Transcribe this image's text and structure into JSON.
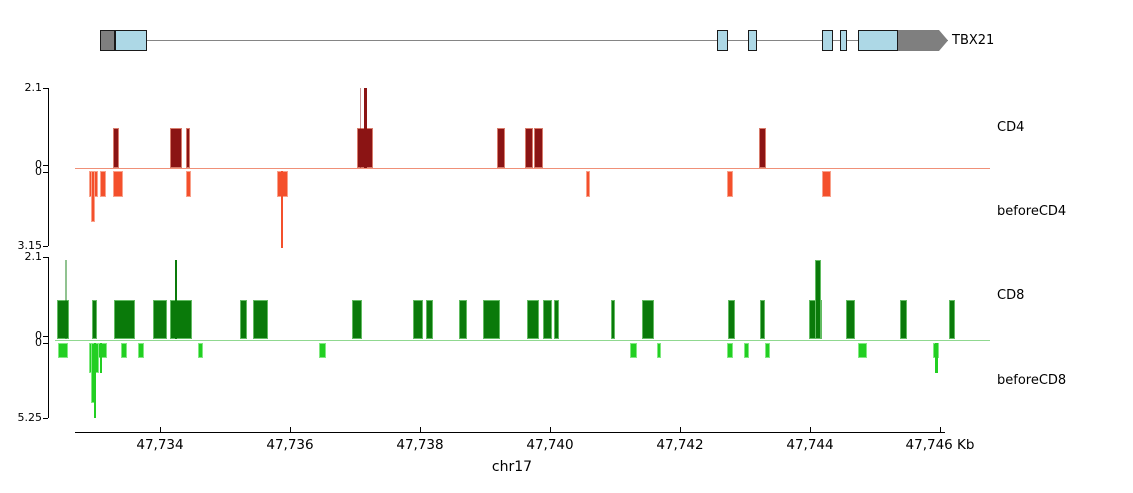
{
  "figure": {
    "background": "#ffffff"
  },
  "gene_track": {
    "label": "TBX21",
    "strand": "+",
    "line_start_kb": 47733.077,
    "line_end_kb": 47746.123,
    "colors": {
      "exon": "#ADD8E6",
      "utr": "#7F7F7F",
      "line": "#858585",
      "border": "#1A1A1A"
    },
    "features": [
      {
        "t": "utr",
        "s": 47733.077,
        "e": 47733.308
      },
      {
        "t": "exon",
        "s": 47733.308,
        "e": 47733.8
      },
      {
        "t": "exon",
        "s": 47742.569,
        "e": 47742.738
      },
      {
        "t": "exon",
        "s": 47743.046,
        "e": 47743.185
      },
      {
        "t": "exon",
        "s": 47744.185,
        "e": 47744.354
      },
      {
        "t": "exon",
        "s": 47744.462,
        "e": 47744.569
      },
      {
        "t": "exon",
        "s": 47744.738,
        "e": 47745.354
      },
      {
        "t": "arrow",
        "s": 47745.354,
        "e": 47746.123
      }
    ]
  },
  "chart_data": {
    "type": "bar",
    "title": "",
    "xlabel": "chr17",
    "x_unit": "Kb",
    "xlim_kb": [
      47732.35,
      47746.25
    ],
    "x_ticks": [
      {
        "kb": 47734,
        "label": "47,734"
      },
      {
        "kb": 47736,
        "label": "47,736"
      },
      {
        "kb": 47738,
        "label": "47,738"
      },
      {
        "kb": 47740,
        "label": "47,740"
      },
      {
        "kb": 47742,
        "label": "47,742"
      },
      {
        "kb": 47744,
        "label": "47,744"
      },
      {
        "kb": 47746,
        "label": "47,746"
      }
    ],
    "grid": false,
    "legend": "track names at right margin",
    "tracks": [
      {
        "name": "CD4",
        "direction": "up",
        "ymax": 2.1,
        "yticks": [
          "2.1",
          "0"
        ],
        "fill": "#8B1414",
        "edge": "rgba(235,150,130,0.8)",
        "baseline_color": "#F09078",
        "bars": [
          [
            47733.277,
            47733.369,
            1.05
          ],
          [
            47734.154,
            47734.338,
            1.05
          ],
          [
            47734.4,
            47734.462,
            1.05
          ],
          [
            47737.031,
            47737.277,
            1.05
          ],
          [
            47737.072,
            47737.095,
            2.1,
            1
          ],
          [
            47737.138,
            47737.185,
            2.1
          ],
          [
            47739.185,
            47739.308,
            1.05
          ],
          [
            47739.615,
            47739.738,
            1.05
          ],
          [
            47739.754,
            47739.892,
            1.05
          ],
          [
            47743.215,
            47743.323,
            1.05
          ]
        ]
      },
      {
        "name": "beforeCD4",
        "direction": "down",
        "ymax": 3.15,
        "yticks": [
          "0",
          "3.15"
        ],
        "fill": "#F4502C",
        "edge": "rgba(250,170,150,0.9)",
        "baseline_color": "#F09078",
        "bars": [
          [
            47732.908,
            47733.046,
            1.05
          ],
          [
            47732.938,
            47733.0,
            2.1
          ],
          [
            47733.077,
            47733.169,
            1.05
          ],
          [
            47733.272,
            47733.426,
            1.05
          ],
          [
            47734.4,
            47734.472,
            1.05
          ],
          [
            47735.8,
            47735.969,
            1.05
          ],
          [
            47735.862,
            47735.892,
            3.15
          ],
          [
            47740.554,
            47740.608,
            1.05
          ],
          [
            47742.723,
            47742.815,
            1.05
          ],
          [
            47744.185,
            47744.323,
            1.05
          ]
        ]
      },
      {
        "name": "CD8",
        "direction": "up",
        "ymax": 2.1,
        "yticks": [
          "2.1",
          "0"
        ],
        "fill": "#0A7A0A",
        "edge": "rgba(120,205,120,0.8)",
        "baseline_color": "#90D890",
        "bars": [
          [
            47732.415,
            47732.6,
            1.05
          ],
          [
            47732.538,
            47732.569,
            2.1,
            1
          ],
          [
            47732.954,
            47733.031,
            1.05
          ],
          [
            47733.292,
            47733.615,
            1.05
          ],
          [
            47733.892,
            47734.108,
            1.05
          ],
          [
            47734.154,
            47734.492,
            1.05
          ],
          [
            47734.231,
            47734.262,
            2.1
          ],
          [
            47735.231,
            47735.338,
            1.05
          ],
          [
            47735.431,
            47735.662,
            1.05
          ],
          [
            47736.954,
            47737.108,
            1.05
          ],
          [
            47737.892,
            47738.046,
            1.05
          ],
          [
            47738.092,
            47738.2,
            1.05
          ],
          [
            47738.6,
            47738.723,
            1.05
          ],
          [
            47738.969,
            47739.231,
            1.05
          ],
          [
            47739.646,
            47739.831,
            1.05
          ],
          [
            47739.892,
            47740.031,
            1.05
          ],
          [
            47740.062,
            47740.138,
            1.05
          ],
          [
            47740.938,
            47741.0,
            1.05
          ],
          [
            47741.415,
            47741.6,
            1.05
          ],
          [
            47742.738,
            47742.846,
            1.05
          ],
          [
            47743.231,
            47743.308,
            1.05
          ],
          [
            47743.985,
            47744.185,
            1.05
          ],
          [
            47744.077,
            47744.169,
            2.1
          ],
          [
            47744.554,
            47744.692,
            1.05
          ],
          [
            47745.385,
            47745.492,
            1.05
          ],
          [
            47746.138,
            47746.231,
            1.05
          ]
        ]
      },
      {
        "name": "beforeCD8",
        "direction": "down",
        "ymax": 5.25,
        "yticks": [
          "0",
          "5.25"
        ],
        "fill": "#22CF22",
        "edge": "rgba(140,235,140,0.9)",
        "baseline_color": "#90D890",
        "bars": [
          [
            47732.431,
            47732.585,
            1.05
          ],
          [
            47732.908,
            47733.185,
            1.05
          ],
          [
            47732.908,
            47733.062,
            2.1
          ],
          [
            47732.938,
            47733.0,
            4.2
          ],
          [
            47732.985,
            47733.015,
            5.25
          ],
          [
            47733.077,
            47733.108,
            2.1
          ],
          [
            47733.4,
            47733.492,
            1.05
          ],
          [
            47733.662,
            47733.754,
            1.05
          ],
          [
            47734.585,
            47734.662,
            1.05
          ],
          [
            47736.446,
            47736.554,
            1.05
          ],
          [
            47741.231,
            47741.338,
            1.05
          ],
          [
            47741.646,
            47741.708,
            1.05
          ],
          [
            47742.723,
            47742.815,
            1.05
          ],
          [
            47742.985,
            47743.062,
            1.05
          ],
          [
            47743.308,
            47743.385,
            1.05
          ],
          [
            47744.738,
            47744.877,
            1.05
          ],
          [
            47745.892,
            47745.985,
            1.05
          ],
          [
            47745.923,
            47745.969,
            2.1
          ]
        ]
      }
    ]
  }
}
